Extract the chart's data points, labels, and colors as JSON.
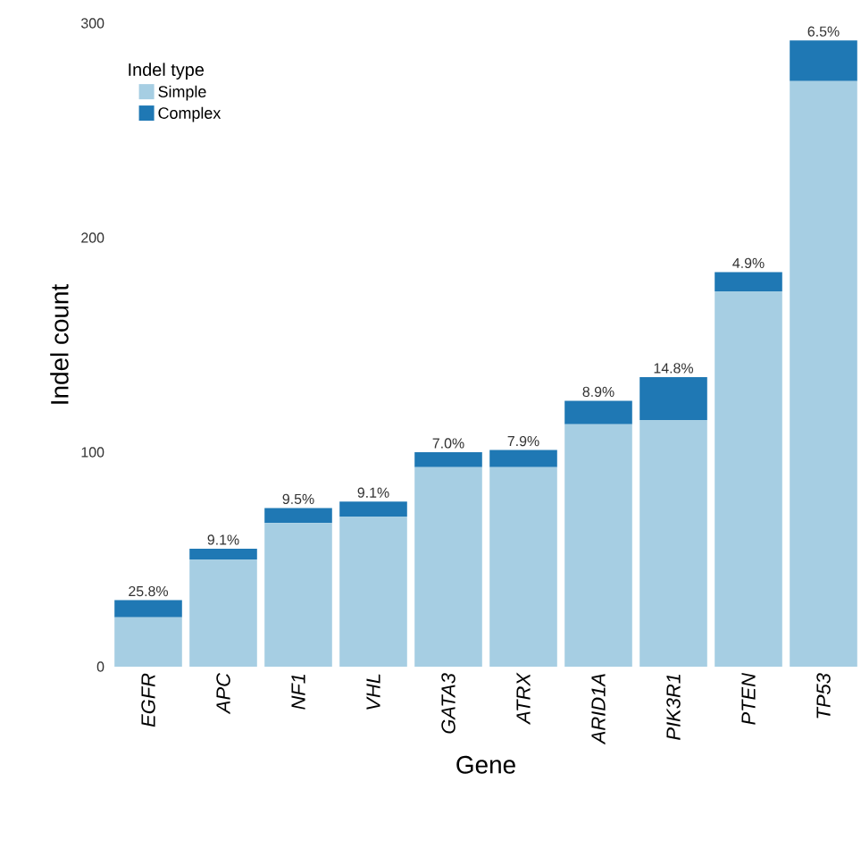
{
  "chart_data": {
    "type": "bar",
    "stacked": true,
    "xlabel": "Gene",
    "ylabel": "Indel count",
    "legend_title": "Indel type",
    "legend": "top left",
    "categories": [
      "EGFR",
      "APC",
      "NF1",
      "VHL",
      "GATA3",
      "ATRX",
      "ARID1A",
      "PIK3R1",
      "PTEN",
      "TP53"
    ],
    "series": [
      {
        "name": "Simple",
        "color": "#a6cee3",
        "values": [
          23,
          50,
          67,
          70,
          93,
          93,
          113,
          115,
          175,
          273
        ]
      },
      {
        "name": "Complex",
        "color": "#1f78b4",
        "values": [
          8,
          5,
          7,
          7,
          7,
          8,
          11,
          20,
          9,
          19
        ]
      }
    ],
    "annotations": [
      {
        "text": "25.8%",
        "x": "EGFR",
        "y": 31
      },
      {
        "text": "9.1%",
        "x": "APC",
        "y": 55
      },
      {
        "text": "9.5%",
        "x": "NF1",
        "y": 74
      },
      {
        "text": "9.1%",
        "x": "VHL",
        "y": 77
      },
      {
        "text": "7.0%",
        "x": "GATA3",
        "y": 100
      },
      {
        "text": "7.9%",
        "x": "ATRX",
        "y": 101
      },
      {
        "text": "8.9%",
        "x": "ARID1A",
        "y": 124
      },
      {
        "text": "14.8%",
        "x": "PIK3R1",
        "y": 135
      },
      {
        "text": "4.9%",
        "x": "PTEN",
        "y": 184
      },
      {
        "text": "6.5%",
        "x": "TP53",
        "y": 292
      }
    ],
    "ylim": [
      0,
      300
    ],
    "yticks": [
      0,
      100,
      200,
      300
    ],
    "grid": false
  }
}
